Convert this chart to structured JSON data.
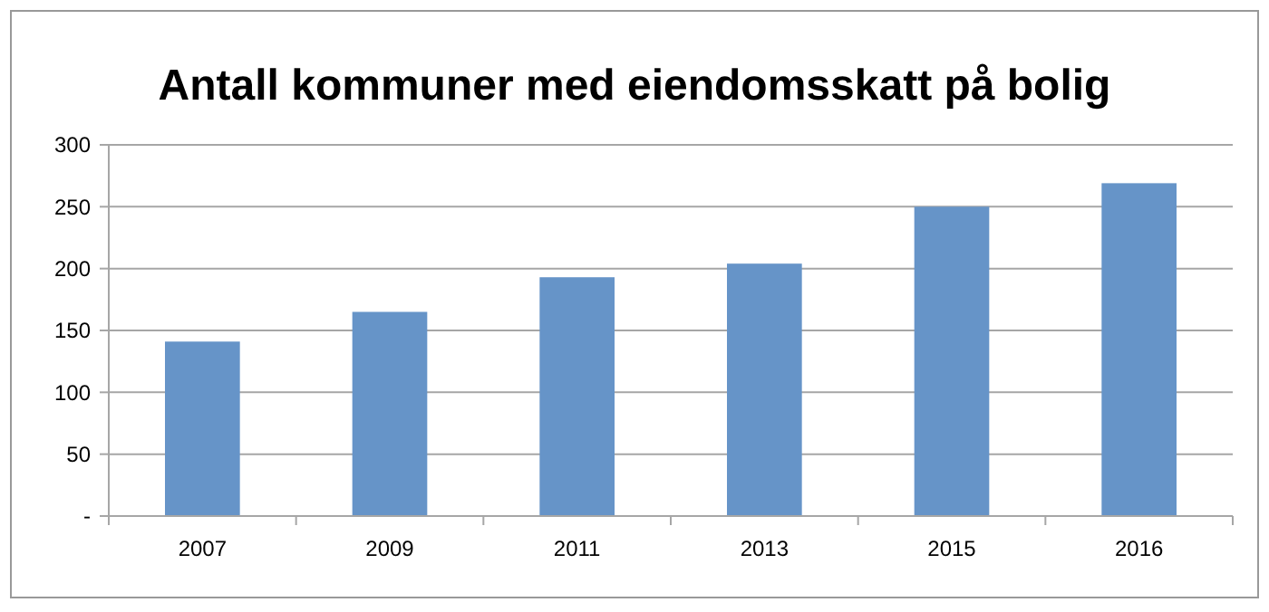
{
  "chart_data": {
    "type": "bar",
    "title": "Antall kommuner med eiendomsskatt på bolig",
    "categories": [
      "2007",
      "2009",
      "2011",
      "2013",
      "2015",
      "2016"
    ],
    "values": [
      141,
      165,
      193,
      204,
      250,
      269
    ],
    "color": "#6694c8",
    "ylim": [
      0,
      300
    ],
    "yticks": [
      {
        "value": 0,
        "label": "-"
      },
      50,
      100,
      150,
      200,
      250,
      300
    ],
    "grid": "y"
  }
}
